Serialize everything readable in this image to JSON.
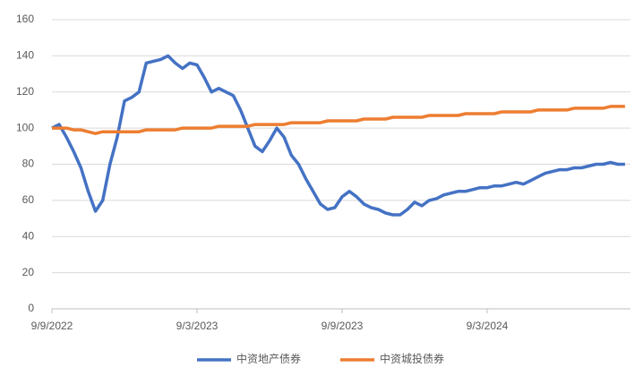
{
  "chart_data": {
    "type": "line",
    "categories": [
      "9/9/2022",
      null,
      null,
      null,
      null,
      null,
      null,
      null,
      null,
      null,
      null,
      null,
      null,
      null,
      null,
      null,
      null,
      null,
      null,
      null,
      "9/3/2023",
      null,
      null,
      null,
      null,
      null,
      null,
      null,
      null,
      null,
      null,
      null,
      null,
      null,
      null,
      null,
      null,
      null,
      null,
      null,
      "9/9/2023",
      null,
      null,
      null,
      null,
      null,
      null,
      null,
      null,
      null,
      null,
      null,
      null,
      null,
      null,
      null,
      null,
      null,
      null,
      null,
      "9/3/2024",
      null,
      null,
      null,
      null,
      null,
      null,
      null,
      null,
      null,
      null,
      null,
      null,
      null,
      null,
      null,
      null,
      null,
      null,
      null
    ],
    "series": [
      {
        "name": "中资地产债券",
        "color": "#4472c4",
        "values": [
          100,
          102,
          95,
          87,
          78,
          65,
          54,
          60,
          80,
          95,
          115,
          117,
          120,
          136,
          137,
          138,
          140,
          136,
          133,
          136,
          135,
          128,
          120,
          122,
          120,
          118,
          110,
          100,
          90,
          87,
          93,
          100,
          95,
          85,
          80,
          72,
          65,
          58,
          55,
          56,
          62,
          65,
          62,
          58,
          56,
          55,
          53,
          52,
          52,
          55,
          59,
          57,
          60,
          61,
          63,
          64,
          65,
          65,
          66,
          67,
          67,
          68,
          68,
          69,
          70,
          69,
          71,
          73,
          75,
          76,
          77,
          77,
          78,
          78,
          79,
          80,
          80,
          81,
          80,
          80
        ]
      },
      {
        "name": "中资城投债券",
        "color": "#ed7d31",
        "values": [
          100,
          100,
          100,
          99,
          99,
          98,
          97,
          98,
          98,
          98,
          98,
          98,
          98,
          99,
          99,
          99,
          99,
          99,
          100,
          100,
          100,
          100,
          100,
          101,
          101,
          101,
          101,
          101,
          102,
          102,
          102,
          102,
          102,
          103,
          103,
          103,
          103,
          103,
          104,
          104,
          104,
          104,
          104,
          105,
          105,
          105,
          105,
          106,
          106,
          106,
          106,
          106,
          107,
          107,
          107,
          107,
          107,
          108,
          108,
          108,
          108,
          108,
          109,
          109,
          109,
          109,
          109,
          110,
          110,
          110,
          110,
          110,
          111,
          111,
          111,
          111,
          111,
          112,
          112,
          112
        ]
      }
    ],
    "ylim": [
      0,
      160
    ],
    "yticks": [
      0,
      20,
      40,
      60,
      80,
      100,
      120,
      140,
      160
    ],
    "grid": true
  }
}
